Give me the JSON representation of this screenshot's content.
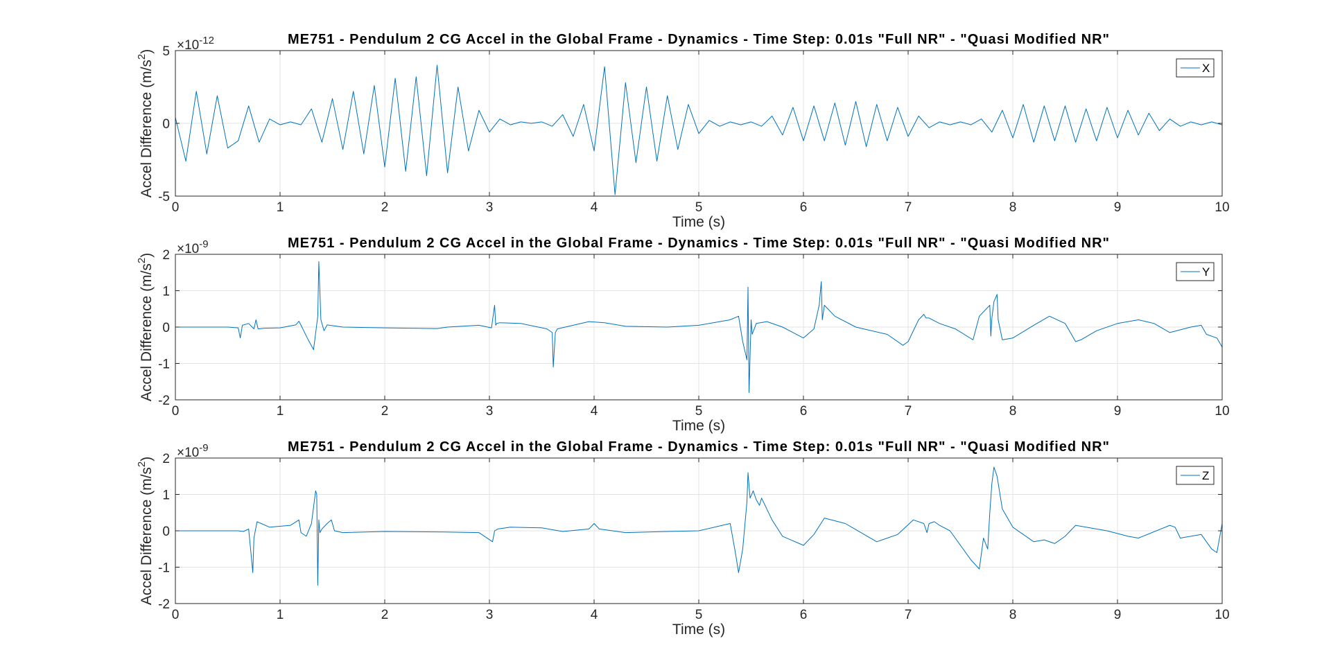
{
  "chart_data": [
    {
      "type": "line",
      "title": "ME751 - Pendulum 2 CG Accel in the Global Frame - Dynamics - Time Step: 0.01s \"Full NR\" - \"Quasi Modified NR\"",
      "xlabel": "Time (s)",
      "ylabel_main": "Accel Difference (m/s",
      "ylabel_sup": "2",
      "ylabel_close": ")",
      "multiplier_base": "×10",
      "multiplier_exp": "-12",
      "xlim": [
        0,
        10
      ],
      "ylim": [
        -5,
        5
      ],
      "xticks": [
        "0",
        "1",
        "2",
        "3",
        "4",
        "5",
        "6",
        "7",
        "8",
        "9",
        "10"
      ],
      "yticks": [
        "-5",
        "0",
        "5"
      ],
      "grid": true,
      "legend_position": "top-right",
      "color": "#0072BD",
      "series": [
        {
          "name": "X",
          "x": [
            0,
            0.1,
            0.2,
            0.3,
            0.4,
            0.5,
            0.6,
            0.7,
            0.8,
            0.9,
            1.0,
            1.1,
            1.2,
            1.3,
            1.4,
            1.5,
            1.6,
            1.7,
            1.8,
            1.9,
            2.0,
            2.1,
            2.2,
            2.3,
            2.4,
            2.5,
            2.6,
            2.7,
            2.8,
            2.9,
            3.0,
            3.1,
            3.2,
            3.3,
            3.4,
            3.5,
            3.6,
            3.7,
            3.8,
            3.9,
            4.0,
            4.1,
            4.2,
            4.3,
            4.4,
            4.5,
            4.6,
            4.7,
            4.8,
            4.9,
            5.0,
            5.1,
            5.2,
            5.3,
            5.4,
            5.5,
            5.6,
            5.7,
            5.8,
            5.9,
            6.0,
            6.1,
            6.2,
            6.3,
            6.4,
            6.5,
            6.6,
            6.7,
            6.8,
            6.9,
            7.0,
            7.1,
            7.2,
            7.3,
            7.4,
            7.5,
            7.6,
            7.7,
            7.8,
            7.9,
            8.0,
            8.1,
            8.2,
            8.3,
            8.4,
            8.5,
            8.6,
            8.7,
            8.8,
            8.9,
            9.0,
            9.1,
            9.2,
            9.3,
            9.4,
            9.5,
            9.6,
            9.7,
            9.8,
            9.9,
            10.0
          ],
          "values": [
            0.4,
            -2.6,
            2.2,
            -2.1,
            1.9,
            -1.7,
            -1.2,
            1.2,
            -1.3,
            0.3,
            -0.1,
            0.1,
            -0.1,
            1.0,
            -1.3,
            1.7,
            -1.8,
            2.2,
            -2.1,
            2.6,
            -3.0,
            3.1,
            -3.3,
            3.2,
            -3.6,
            4.0,
            -3.4,
            2.5,
            -1.9,
            0.9,
            -0.6,
            0.3,
            -0.1,
            0.1,
            0,
            0.1,
            -0.2,
            0.6,
            -0.9,
            1.3,
            -1.9,
            3.9,
            -4.9,
            2.8,
            -2.7,
            2.5,
            -2.6,
            1.9,
            -1.8,
            1.3,
            -0.7,
            0.2,
            -0.2,
            0.1,
            -0.1,
            0.1,
            -0.2,
            0.5,
            -0.8,
            1.1,
            -1.2,
            1.2,
            -1.2,
            1.4,
            -1.5,
            1.5,
            -1.6,
            1.3,
            -1.2,
            1.1,
            -0.9,
            0.5,
            -0.3,
            0.1,
            -0.1,
            0.1,
            -0.1,
            0.3,
            -0.6,
            0.9,
            -1.0,
            1.3,
            -1.3,
            1.2,
            -1.2,
            1.2,
            -1.3,
            1.0,
            -1.2,
            1.1,
            -1.0,
            0.9,
            -0.8,
            0.7,
            -0.5,
            0.3,
            -0.2,
            0.1,
            -0.1,
            0.1,
            -0.1
          ]
        }
      ]
    },
    {
      "type": "line",
      "title": "ME751 - Pendulum 2 CG Accel in the Global Frame - Dynamics - Time Step: 0.01s \"Full NR\" - \"Quasi Modified NR\"",
      "xlabel": "Time (s)",
      "ylabel_main": "Accel Difference (m/s",
      "ylabel_sup": "2",
      "ylabel_close": ")",
      "multiplier_base": "×10",
      "multiplier_exp": "-9",
      "xlim": [
        0,
        10
      ],
      "ylim": [
        -2,
        2
      ],
      "xticks": [
        "0",
        "1",
        "2",
        "3",
        "4",
        "5",
        "6",
        "7",
        "8",
        "9",
        "10"
      ],
      "yticks": [
        "-2",
        "-1",
        "0",
        "1",
        "2"
      ],
      "grid": true,
      "legend_position": "top-right",
      "color": "#0072BD",
      "series": [
        {
          "name": "Y",
          "x": [
            0,
            0.5,
            0.6,
            0.62,
            0.64,
            0.7,
            0.75,
            0.77,
            0.79,
            0.85,
            1.0,
            1.15,
            1.18,
            1.2,
            1.26,
            1.32,
            1.36,
            1.37,
            1.39,
            1.42,
            1.45,
            1.6,
            2.0,
            2.5,
            2.6,
            2.9,
            3.02,
            3.05,
            3.06,
            3.07,
            3.1,
            3.3,
            3.55,
            3.6,
            3.61,
            3.63,
            3.65,
            3.8,
            3.95,
            4.1,
            4.3,
            4.7,
            5.0,
            5.3,
            5.38,
            5.42,
            5.46,
            5.47,
            5.48,
            5.5,
            5.51,
            5.55,
            5.65,
            5.8,
            6.0,
            6.1,
            6.15,
            6.17,
            6.18,
            6.2,
            6.3,
            6.5,
            6.8,
            6.95,
            7.0,
            7.1,
            7.15,
            7.17,
            7.2,
            7.3,
            7.45,
            7.62,
            7.68,
            7.78,
            7.79,
            7.8,
            7.82,
            7.85,
            7.86,
            7.9,
            8.0,
            8.2,
            8.35,
            8.5,
            8.6,
            8.65,
            8.8,
            9.0,
            9.2,
            9.35,
            9.5,
            9.7,
            9.8,
            9.85,
            9.95,
            10.0
          ],
          "values": [
            0,
            0,
            -0.02,
            -0.3,
            0.05,
            0.1,
            -0.05,
            0.2,
            -0.05,
            -0.03,
            -0.02,
            0.06,
            0.16,
            0.05,
            -0.3,
            -0.62,
            0.3,
            1.8,
            0.2,
            -0.1,
            0.06,
            0,
            -0.02,
            -0.04,
            0,
            0.05,
            -0.02,
            0.6,
            0.05,
            0.1,
            0.12,
            0.1,
            -0.05,
            -0.15,
            -1.1,
            -0.15,
            -0.05,
            0.05,
            0.15,
            0.12,
            0.02,
            0,
            0.05,
            0.2,
            0.3,
            -0.4,
            -0.9,
            1.1,
            -1.8,
            0.2,
            -0.2,
            0.1,
            0.15,
            0,
            -0.3,
            -0.05,
            0.6,
            1.25,
            0.2,
            0.6,
            0.3,
            0,
            -0.2,
            -0.5,
            -0.4,
            0.2,
            0.35,
            0.25,
            0.25,
            0.1,
            -0.05,
            -0.35,
            0.3,
            0.6,
            -0.25,
            0.25,
            0.7,
            0.9,
            0.2,
            -0.35,
            -0.3,
            0.05,
            0.3,
            0.1,
            -0.4,
            -0.35,
            -0.1,
            0.1,
            0.2,
            0.1,
            -0.15,
            0,
            0.05,
            -0.2,
            -0.3,
            -0.55
          ]
        }
      ]
    },
    {
      "type": "line",
      "title": "ME751 - Pendulum 2 CG Accel in the Global Frame - Dynamics - Time Step: 0.01s \"Full NR\" - \"Quasi Modified NR\"",
      "xlabel": "Time (s)",
      "ylabel_main": "Accel Difference (m/s",
      "ylabel_sup": "2",
      "ylabel_close": ")",
      "multiplier_base": "×10",
      "multiplier_exp": "-9",
      "xlim": [
        0,
        10
      ],
      "ylim": [
        -2,
        2
      ],
      "xticks": [
        "0",
        "1",
        "2",
        "3",
        "4",
        "5",
        "6",
        "7",
        "8",
        "9",
        "10"
      ],
      "yticks": [
        "-2",
        "-1",
        "0",
        "1",
        "2"
      ],
      "grid": true,
      "legend_position": "top-right",
      "color": "#0072BD",
      "series": [
        {
          "name": "Z",
          "x": [
            0,
            0.6,
            0.65,
            0.7,
            0.74,
            0.75,
            0.78,
            0.82,
            0.9,
            1.1,
            1.18,
            1.2,
            1.25,
            1.3,
            1.34,
            1.35,
            1.36,
            1.37,
            1.38,
            1.4,
            1.45,
            1.49,
            1.52,
            1.6,
            2.0,
            2.5,
            2.9,
            3.03,
            3.05,
            3.08,
            3.2,
            3.5,
            3.7,
            3.95,
            4.0,
            4.05,
            4.3,
            4.7,
            5.0,
            5.3,
            5.35,
            5.38,
            5.42,
            5.46,
            5.47,
            5.49,
            5.52,
            5.55,
            5.58,
            5.6,
            5.7,
            5.8,
            6.0,
            6.1,
            6.2,
            6.4,
            6.7,
            6.9,
            7.05,
            7.15,
            7.18,
            7.2,
            7.25,
            7.3,
            7.4,
            7.6,
            7.68,
            7.72,
            7.76,
            7.78,
            7.8,
            7.82,
            7.85,
            7.9,
            8.0,
            8.2,
            8.3,
            8.4,
            8.5,
            8.6,
            8.7,
            8.9,
            9.1,
            9.2,
            9.5,
            9.55,
            9.6,
            9.8,
            9.9,
            9.95,
            10.0
          ],
          "values": [
            0,
            0,
            -0.02,
            0.05,
            -1.15,
            -0.2,
            0.25,
            0.2,
            0.1,
            0.15,
            0.3,
            -0.05,
            -0.15,
            0.2,
            1.1,
            1.0,
            -1.5,
            0.3,
            -0.05,
            0.05,
            0.2,
            0.3,
            0,
            -0.05,
            -0.02,
            -0.03,
            -0.05,
            -0.3,
            0,
            0.05,
            0.1,
            0.08,
            -0.02,
            0.05,
            0.2,
            0.05,
            -0.05,
            -0.02,
            0,
            0.2,
            -0.6,
            -1.15,
            -0.5,
            0.8,
            1.6,
            0.9,
            1.1,
            0.85,
            0.7,
            0.9,
            0.3,
            -0.15,
            -0.4,
            -0.1,
            0.35,
            0.2,
            -0.3,
            -0.1,
            0.3,
            0.2,
            -0.05,
            0.2,
            0.25,
            0.15,
            0,
            -0.8,
            -1.05,
            -0.2,
            -0.5,
            0.5,
            1.3,
            1.75,
            1.5,
            0.6,
            0.1,
            -0.3,
            -0.25,
            -0.35,
            -0.15,
            0.15,
            0.1,
            0,
            -0.15,
            -0.2,
            0.15,
            0.1,
            -0.2,
            -0.1,
            -0.5,
            -0.6,
            0.2
          ]
        }
      ]
    }
  ]
}
